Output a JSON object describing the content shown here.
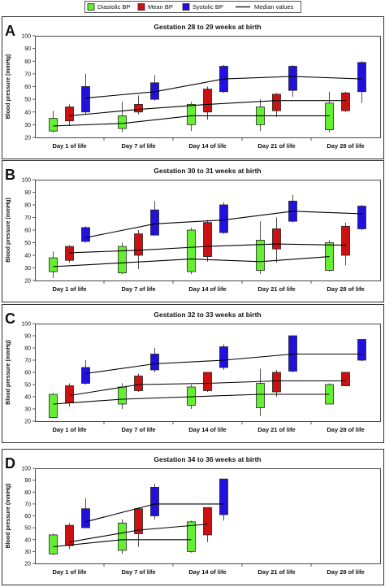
{
  "legend": {
    "items": [
      {
        "label": "Diastolic BP",
        "color": "#66ee33",
        "kind": "box"
      },
      {
        "label": "Mean BP",
        "color": "#cc1111",
        "kind": "box"
      },
      {
        "label": "Systolic BP",
        "color": "#2211dd",
        "kind": "box"
      },
      {
        "label": "Median values",
        "color": "#000000",
        "kind": "line"
      }
    ]
  },
  "chart_data": [
    {
      "type": "box",
      "panel_label": "A",
      "title": "Gestation 28 to 29 weeks at birth",
      "ylabel": "Blood pressure (mmHg)",
      "ylim": [
        20,
        100
      ],
      "yticks": [
        20,
        30,
        40,
        50,
        60,
        70,
        80,
        90,
        100
      ],
      "categories": [
        "Day 1 of life",
        "Day 7 of life",
        "Day 14 of life",
        "Day 21 of life",
        "Day 28 of life"
      ],
      "series": [
        {
          "name": "Diastolic BP",
          "color": "#66ee33",
          "boxes": [
            {
              "min": 24,
              "q1": 25,
              "q3": 35,
              "max": 41,
              "median": 29
            },
            {
              "min": 24,
              "q1": 27,
              "q3": 37,
              "max": 48,
              "median": 31
            },
            {
              "min": 25,
              "q1": 30,
              "q3": 46,
              "max": 48,
              "median": 37
            },
            {
              "min": 25,
              "q1": 30,
              "q3": 44,
              "max": 50,
              "median": 37
            },
            {
              "min": 24,
              "q1": 26,
              "q3": 47,
              "max": 56,
              "median": 37
            }
          ]
        },
        {
          "name": "Mean BP",
          "color": "#cc1111",
          "boxes": [
            {
              "min": 29,
              "q1": 33,
              "q3": 44,
              "max": 46,
              "median": 37
            },
            {
              "min": 38,
              "q1": 40,
              "q3": 46,
              "max": 53,
              "median": 42
            },
            {
              "min": 34,
              "q1": 40,
              "q3": 58,
              "max": 60,
              "median": 46
            },
            {
              "min": 36,
              "q1": 41,
              "q3": 54,
              "max": 55,
              "median": 49
            },
            {
              "min": 40,
              "q1": 41,
              "q3": 55,
              "max": 56,
              "median": 49
            }
          ]
        },
        {
          "name": "Systolic BP",
          "color": "#2211dd",
          "boxes": [
            {
              "min": 38,
              "q1": 40,
              "q3": 60,
              "max": 70,
              "median": 51
            },
            {
              "min": 49,
              "q1": 50,
              "q3": 63,
              "max": 69,
              "median": 56
            },
            {
              "min": 55,
              "q1": 56,
              "q3": 76,
              "max": 77,
              "median": 66
            },
            {
              "min": 52,
              "q1": 57,
              "q3": 76,
              "max": 77,
              "median": 68
            },
            {
              "min": 47,
              "q1": 56,
              "q3": 79,
              "max": 80,
              "median": 66
            }
          ]
        }
      ]
    },
    {
      "type": "box",
      "panel_label": "B",
      "title": "Gestation 30 to 31 weeks at birth",
      "ylabel": "Blood pressure (mmHg)",
      "ylim": [
        20,
        100
      ],
      "yticks": [
        20,
        30,
        40,
        50,
        60,
        70,
        80,
        90,
        100
      ],
      "categories": [
        "Day 1 of life",
        "Day 7 of life",
        "Day 14 of life",
        "Day 21 of life",
        "Day 28 of life"
      ],
      "series": [
        {
          "name": "Diastolic BP",
          "color": "#66ee33",
          "boxes": [
            {
              "min": 22,
              "q1": 27,
              "q3": 38,
              "max": 43,
              "median": 31
            },
            {
              "min": 25,
              "q1": 26,
              "q3": 47,
              "max": 50,
              "median": 34
            },
            {
              "min": 25,
              "q1": 27,
              "q3": 60,
              "max": 62,
              "median": 37
            },
            {
              "min": 25,
              "q1": 28,
              "q3": 52,
              "max": 67,
              "median": 35
            },
            {
              "min": 27,
              "q1": 28,
              "q3": 50,
              "max": 52,
              "median": 39
            }
          ]
        },
        {
          "name": "Mean BP",
          "color": "#cc1111",
          "boxes": [
            {
              "min": 34,
              "q1": 36,
              "q3": 47,
              "max": 48,
              "median": 42
            },
            {
              "min": 29,
              "q1": 40,
              "q3": 57,
              "max": 60,
              "median": 44
            },
            {
              "min": 35,
              "q1": 39,
              "q3": 66,
              "max": 68,
              "median": 47
            },
            {
              "min": 34,
              "q1": 45,
              "q3": 61,
              "max": 70,
              "median": 49
            },
            {
              "min": 32,
              "q1": 40,
              "q3": 63,
              "max": 66,
              "median": 48
            }
          ]
        },
        {
          "name": "Systolic BP",
          "color": "#2211dd",
          "boxes": [
            {
              "min": 50,
              "q1": 51,
              "q3": 62,
              "max": 63,
              "median": 54
            },
            {
              "min": 56,
              "q1": 56,
              "q3": 76,
              "max": 83,
              "median": 65
            },
            {
              "min": 57,
              "q1": 58,
              "q3": 80,
              "max": 82,
              "median": 68
            },
            {
              "min": 66,
              "q1": 67,
              "q3": 83,
              "max": 88,
              "median": 75
            },
            {
              "min": 60,
              "q1": 61,
              "q3": 79,
              "max": 80,
              "median": 73
            }
          ]
        }
      ]
    },
    {
      "type": "box",
      "panel_label": "C",
      "title": "Gestation 32 to 33 weeks at birth",
      "ylabel": "Blood pressure (mmHg)",
      "ylim": [
        20,
        100
      ],
      "yticks": [
        20,
        30,
        40,
        50,
        60,
        70,
        80,
        90,
        100
      ],
      "categories": [
        "Day 1 of life",
        "Day 7 of life",
        "Day 14 of life",
        "Day 21 of life",
        "Day 28 of life"
      ],
      "series": [
        {
          "name": "Diastolic BP",
          "color": "#66ee33",
          "boxes": [
            {
              "min": 23,
              "q1": 23,
              "q3": 42,
              "max": 43,
              "median": 34
            },
            {
              "min": 30,
              "q1": 34,
              "q3": 48,
              "max": 51,
              "median": 38
            },
            {
              "min": 30,
              "q1": 33,
              "q3": 48,
              "max": 50,
              "median": 40
            },
            {
              "min": 24,
              "q1": 31,
              "q3": 51,
              "max": 63,
              "median": 42
            },
            {
              "min": 34,
              "q1": 34,
              "q3": 50,
              "max": 51,
              "median": 42
            }
          ]
        },
        {
          "name": "Mean BP",
          "color": "#cc1111",
          "boxes": [
            {
              "min": 32,
              "q1": 35,
              "q3": 49,
              "max": 51,
              "median": 41
            },
            {
              "min": 44,
              "q1": 45,
              "q3": 57,
              "max": 59,
              "median": 50
            },
            {
              "min": 44,
              "q1": 45,
              "q3": 60,
              "max": 60,
              "median": 51
            },
            {
              "min": 40,
              "q1": 44,
              "q3": 60,
              "max": 62,
              "median": 53
            },
            {
              "min": 49,
              "q1": 49,
              "q3": 60,
              "max": 60,
              "median": 53
            }
          ]
        },
        {
          "name": "Systolic BP",
          "color": "#2211dd",
          "boxes": [
            {
              "min": 50,
              "q1": 51,
              "q3": 64,
              "max": 70,
              "median": 59
            },
            {
              "min": 60,
              "q1": 62,
              "q3": 75,
              "max": 80,
              "median": 67
            },
            {
              "min": 62,
              "q1": 64,
              "q3": 81,
              "max": 83,
              "median": 70
            },
            {
              "min": 60,
              "q1": 61,
              "q3": 90,
              "max": 90,
              "median": 75
            },
            {
              "min": 69,
              "q1": 70,
              "q3": 87,
              "max": 87,
              "median": 75
            }
          ]
        }
      ]
    },
    {
      "type": "box",
      "panel_label": "D",
      "title": "Gestation 34 to 36 weeks at birth",
      "ylabel": "Blood pressure (mmHg)",
      "ylim": [
        20,
        100
      ],
      "yticks": [
        20,
        30,
        40,
        50,
        60,
        70,
        80,
        90,
        100
      ],
      "categories": [
        "Day 1 of life",
        "Day 7 of life",
        "Day 14 of life",
        "Day 21 of life",
        "Day 28 of life"
      ],
      "series": [
        {
          "name": "Diastolic BP",
          "color": "#66ee33",
          "boxes": [
            {
              "min": 27,
              "q1": 28,
              "q3": 44,
              "max": 45,
              "median": 34
            },
            {
              "min": 28,
              "q1": 31,
              "q3": 54,
              "max": 57,
              "median": 40
            },
            {
              "min": 29,
              "q1": 30,
              "q3": 55,
              "max": 56,
              "median": 40
            },
            null,
            null
          ]
        },
        {
          "name": "Mean BP",
          "color": "#cc1111",
          "boxes": [
            {
              "min": 32,
              "q1": 35,
              "q3": 52,
              "max": 54,
              "median": 38
            },
            {
              "min": 34,
              "q1": 45,
              "q3": 66,
              "max": 67,
              "median": 48
            },
            {
              "min": 38,
              "q1": 44,
              "q3": 67,
              "max": 67,
              "median": 53
            },
            null,
            null
          ]
        },
        {
          "name": "Systolic BP",
          "color": "#2211dd",
          "boxes": [
            {
              "min": 50,
              "q1": 50,
              "q3": 66,
              "max": 75,
              "median": 55
            },
            {
              "min": 57,
              "q1": 60,
              "q3": 84,
              "max": 87,
              "median": 70
            },
            {
              "min": 56,
              "q1": 61,
              "q3": 91,
              "max": 91,
              "median": 70
            },
            null,
            null
          ]
        }
      ]
    }
  ]
}
